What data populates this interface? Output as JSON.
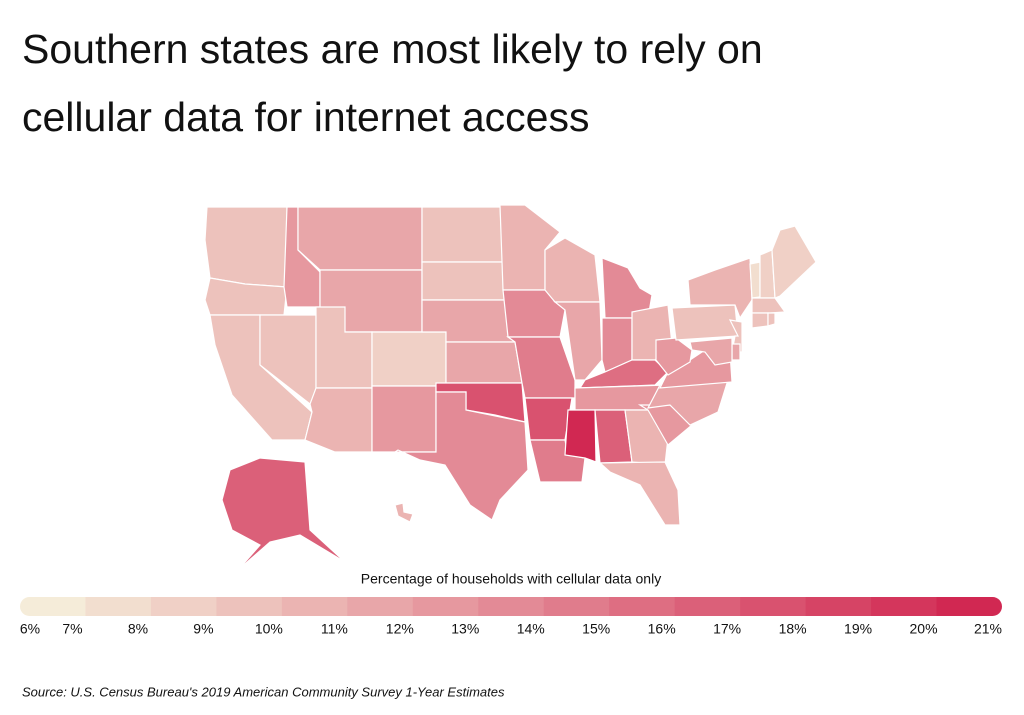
{
  "chart_data": {
    "type": "choropleth",
    "title_lines": [
      "Southern states are most likely to rely on",
      "cellular data for internet access"
    ],
    "legend_title": "Percentage of households with cellular data only",
    "source": "Source:  U.S. Census Bureau's 2019 American Community Survey 1-Year Estimates",
    "color_low": "#f5ecd9",
    "color_high": "#d12852",
    "range": [
      6,
      21
    ],
    "ticks": [
      {
        "value": 6,
        "label": "6%"
      },
      {
        "value": 7,
        "label": "7%"
      },
      {
        "value": 8,
        "label": "8%"
      },
      {
        "value": 9,
        "label": "9%"
      },
      {
        "value": 10,
        "label": "10%"
      },
      {
        "value": 11,
        "label": "11%"
      },
      {
        "value": 12,
        "label": "12%"
      },
      {
        "value": 13,
        "label": "13%"
      },
      {
        "value": 14,
        "label": "14%"
      },
      {
        "value": 15,
        "label": "15%"
      },
      {
        "value": 16,
        "label": "16%"
      },
      {
        "value": 17,
        "label": "17%"
      },
      {
        "value": 18,
        "label": "18%"
      },
      {
        "value": 19,
        "label": "19%"
      },
      {
        "value": 20,
        "label": "20%"
      },
      {
        "value": 21,
        "label": "21%"
      }
    ],
    "values": [
      9,
      9.5,
      9.5,
      9.5,
      12.5,
      11.5,
      11,
      9.5,
      8.5,
      10,
      12,
      9,
      9,
      11,
      11.5,
      17,
      13.5,
      10,
      13.5,
      14,
      17,
      14,
      10.5,
      11,
      13,
      13,
      10,
      15,
      12,
      20.5,
      16,
      10.5,
      10,
      12,
      11,
      12,
      12,
      9,
      10,
      7,
      8,
      8,
      9,
      9,
      9,
      9,
      11,
      11,
      16,
      10
    ]
  }
}
